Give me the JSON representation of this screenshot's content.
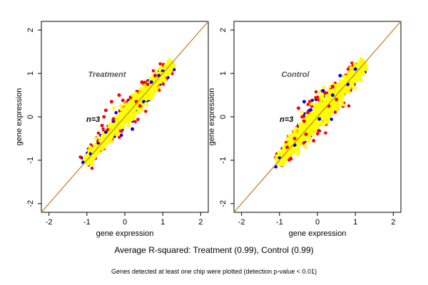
{
  "chart_data": [
    {
      "type": "scatter",
      "title": "Treatment",
      "annotation": "n=3",
      "xlabel": "gene expression",
      "ylabel": "gene expression",
      "xlim": [
        -2.2,
        2.2
      ],
      "ylim": [
        -2.2,
        2.2
      ],
      "xticks": [
        -2,
        -1,
        0,
        1,
        2
      ],
      "yticks": [
        -2,
        -1,
        0,
        1,
        2
      ],
      "reference_line": "y = x",
      "spread": 0.1,
      "series": [
        {
          "color": "#0000ff",
          "points": [
            [
              -1.1,
              -1.05
            ],
            [
              -0.9,
              -0.85
            ],
            [
              -0.7,
              -0.6
            ],
            [
              -0.5,
              -0.35
            ],
            [
              0.2,
              -0.28
            ],
            [
              0.5,
              0.35
            ],
            [
              0.9,
              0.95
            ],
            [
              1.0,
              1.05
            ],
            [
              0.7,
              0.8
            ],
            [
              -0.3,
              -0.1
            ]
          ]
        },
        {
          "color": "#ff0000",
          "points": [
            [
              -0.5,
              0.15
            ],
            [
              -0.6,
              -0.2
            ],
            [
              -0.3,
              -0.05
            ],
            [
              -0.35,
              0.35
            ],
            [
              -0.15,
              0.5
            ],
            [
              -0.05,
              0.38
            ],
            [
              0.15,
              0.45
            ],
            [
              0.3,
              0.35
            ],
            [
              0.45,
              0.8
            ],
            [
              0.6,
              0.75
            ],
            [
              0.8,
              0.95
            ],
            [
              -0.7,
              -0.55
            ],
            [
              -0.45,
              -0.3
            ],
            [
              -0.2,
              -0.1
            ],
            [
              0.4,
              0.25
            ],
            [
              -0.55,
              0.0
            ]
          ]
        },
        {
          "color": "#ffff00",
          "points": [
            [
              -1.0,
              -1.0
            ],
            [
              -0.85,
              -0.8
            ],
            [
              -0.65,
              -0.55
            ],
            [
              -0.4,
              -0.35
            ],
            [
              -0.2,
              -0.1
            ],
            [
              0.0,
              0.05
            ],
            [
              0.2,
              0.2
            ],
            [
              0.4,
              0.45
            ],
            [
              0.6,
              0.6
            ],
            [
              0.8,
              0.85
            ],
            [
              1.0,
              1.0
            ],
            [
              1.2,
              1.2
            ],
            [
              -0.3,
              0.2
            ],
            [
              0.1,
              -0.2
            ],
            [
              0.35,
              0.5
            ],
            [
              0.55,
              0.3
            ],
            [
              0.2,
              0.5
            ],
            [
              -0.1,
              0.25
            ]
          ]
        }
      ]
    },
    {
      "type": "scatter",
      "title": "Control",
      "annotation": "n=3",
      "xlabel": "gene expression",
      "ylabel": "gene expression",
      "xlim": [
        -2.2,
        2.2
      ],
      "ylim": [
        -2.2,
        2.2
      ],
      "xticks": [
        -2,
        -1,
        0,
        1,
        2
      ],
      "yticks": [
        -2,
        -1,
        0,
        1,
        2
      ],
      "reference_line": "y = x",
      "spread": 0.13,
      "series": [
        {
          "color": "#0000ff",
          "points": [
            [
              -1.1,
              -1.15
            ],
            [
              -1.0,
              -0.95
            ],
            [
              -0.6,
              -0.65
            ],
            [
              -0.35,
              0.35
            ],
            [
              -0.2,
              0.15
            ],
            [
              0.05,
              -0.05
            ],
            [
              0.15,
              0.6
            ],
            [
              0.4,
              0.5
            ],
            [
              0.6,
              0.95
            ],
            [
              0.8,
              0.75
            ],
            [
              1.0,
              1.1
            ]
          ]
        },
        {
          "color": "#ff0000",
          "points": [
            [
              -0.8,
              -0.7
            ],
            [
              -0.6,
              -0.5
            ],
            [
              -0.5,
              0.2
            ],
            [
              -0.4,
              0.0
            ],
            [
              -0.35,
              -0.1
            ],
            [
              -0.25,
              0.1
            ],
            [
              -0.2,
              0.35
            ],
            [
              -0.15,
              0.25
            ],
            [
              0.0,
              0.45
            ],
            [
              0.2,
              0.55
            ],
            [
              0.4,
              0.7
            ],
            [
              -0.3,
              -0.4
            ],
            [
              -0.1,
              -0.55
            ],
            [
              0.3,
              0.25
            ],
            [
              0.5,
              0.4
            ]
          ]
        },
        {
          "color": "#ffff00",
          "points": [
            [
              -1.05,
              -1.0
            ],
            [
              -0.9,
              -0.85
            ],
            [
              -0.7,
              -0.6
            ],
            [
              -0.5,
              -0.45
            ],
            [
              -0.3,
              -0.25
            ],
            [
              -0.1,
              -0.05
            ],
            [
              0.1,
              0.1
            ],
            [
              0.3,
              0.35
            ],
            [
              0.5,
              0.55
            ],
            [
              0.7,
              0.7
            ],
            [
              0.9,
              0.9
            ],
            [
              1.1,
              1.1
            ],
            [
              -0.4,
              0.1
            ],
            [
              0.15,
              -0.15
            ],
            [
              0.35,
              0.6
            ],
            [
              -0.15,
              0.3
            ]
          ]
        }
      ]
    }
  ],
  "captions": {
    "main": "Average R-squared: Treatment (0.99), Control (0.99)",
    "note": "Genes detected at least one chip were plotted (detection p-value < 0.01)"
  }
}
